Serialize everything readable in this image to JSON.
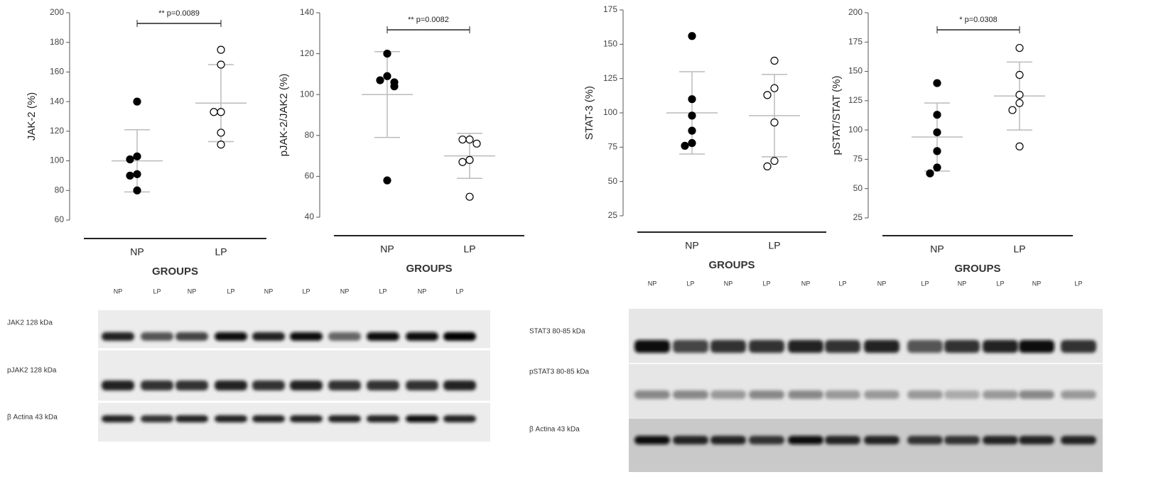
{
  "chart_data": [
    {
      "type": "scatter",
      "y_label": "JAK-2 (%)",
      "x_label": "GROUPS",
      "categories": [
        "NP",
        "LP"
      ],
      "ylim": [
        60,
        200
      ],
      "yticks": [
        60,
        80,
        100,
        120,
        140,
        160,
        180,
        200
      ],
      "annotation": "** p=0.0089",
      "series": [
        {
          "name": "NP",
          "color": "#000000",
          "marker": "filled",
          "values": [
            140,
            103,
            101,
            91,
            90,
            80
          ],
          "mean": 100,
          "sd": 21
        },
        {
          "name": "LP",
          "color": "#000000",
          "marker": "open",
          "values": [
            175,
            165,
            133,
            133,
            119,
            111
          ],
          "mean": 139,
          "sd": 26
        }
      ]
    },
    {
      "type": "scatter",
      "y_label": "pJAK-2/JAK2 (%)",
      "x_label": "GROUPS",
      "categories": [
        "NP",
        "LP"
      ],
      "ylim": [
        40,
        140
      ],
      "yticks": [
        40,
        60,
        80,
        100,
        120,
        140
      ],
      "annotation": "** p=0.0082",
      "series": [
        {
          "name": "NP",
          "color": "#000000",
          "marker": "filled",
          "values": [
            120,
            109,
            107,
            106,
            104,
            58
          ],
          "mean": 100,
          "sd": 21
        },
        {
          "name": "LP",
          "color": "#000000",
          "marker": "open",
          "values": [
            78,
            78,
            76,
            68,
            67,
            50
          ],
          "mean": 70,
          "sd": 11
        }
      ]
    },
    {
      "type": "scatter",
      "y_label": "STAT-3 (%)",
      "x_label": "GROUPS",
      "categories": [
        "NP",
        "LP"
      ],
      "ylim": [
        25,
        175
      ],
      "yticks": [
        25,
        50,
        75,
        100,
        125,
        150,
        175
      ],
      "series": [
        {
          "name": "NP",
          "color": "#000000",
          "marker": "filled",
          "values": [
            156,
            110,
            98,
            87,
            78,
            76
          ],
          "mean": 100,
          "sd": 30
        },
        {
          "name": "LP",
          "color": "#000000",
          "marker": "open",
          "values": [
            138,
            118,
            113,
            93,
            65,
            61
          ],
          "mean": 98,
          "sd": 30
        }
      ]
    },
    {
      "type": "scatter",
      "y_label": "pSTAT/STAT (%)",
      "x_label": "GROUPS",
      "categories": [
        "NP",
        "LP"
      ],
      "ylim": [
        25,
        200
      ],
      "yticks": [
        25,
        50,
        75,
        100,
        125,
        150,
        175,
        200
      ],
      "annotation": "* p=0.0308",
      "series": [
        {
          "name": "NP",
          "color": "#000000",
          "marker": "filled",
          "values": [
            140,
            113,
            98,
            82,
            68,
            63
          ],
          "mean": 94,
          "sd": 29
        },
        {
          "name": "LP",
          "color": "#000000",
          "marker": "open",
          "values": [
            170,
            147,
            130,
            123,
            117,
            86
          ],
          "mean": 129,
          "sd": 29
        }
      ]
    }
  ],
  "blots": [
    {
      "lanes": [
        "NP",
        "LP",
        "NP",
        "LP",
        "NP",
        "LP",
        "NP",
        "LP",
        "NP",
        "LP"
      ],
      "rows": [
        "JAK2 128 kDa",
        "pJAK2 128 kDa",
        "β Actina 43 kDa"
      ]
    },
    {
      "lanes": [
        "NP",
        "LP",
        "NP",
        "LP",
        "NP",
        "LP",
        "NP",
        "LP",
        "NP",
        "LP",
        "NP",
        "LP"
      ],
      "rows": [
        "STAT3 80-85 kDa",
        "pSTAT3 80-85 kDa",
        "β Actina 43 kDa"
      ]
    }
  ]
}
